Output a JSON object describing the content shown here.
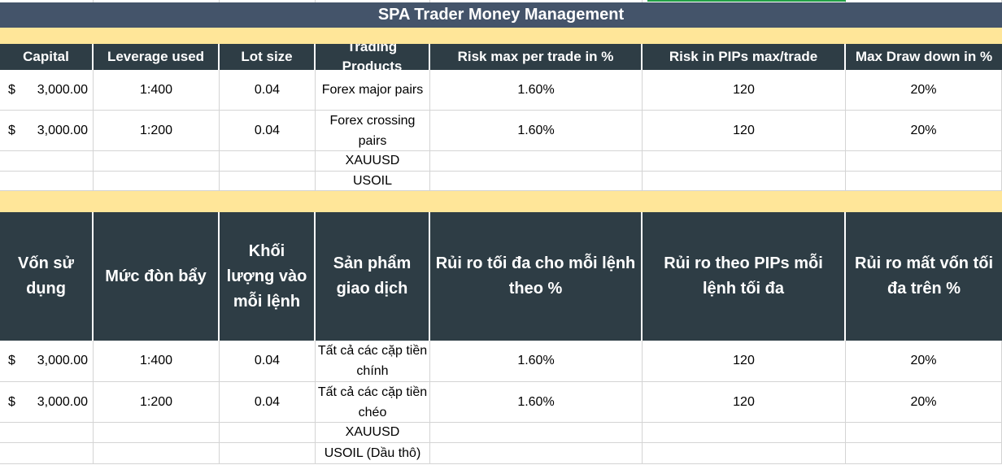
{
  "title": "SPA Trader Money Management",
  "colors": {
    "header_bg": "#2e3d45",
    "title_bg": "#44546a",
    "band": "#ffe699",
    "accent_green": "#22a045"
  },
  "english": {
    "headers": [
      "Capital",
      "Leverage used",
      "Lot size",
      "Trading Products",
      "Risk max per trade  in %",
      "Risk in PIPs max/trade",
      "Max Draw down in %"
    ],
    "rows": [
      {
        "currency": "$",
        "capital": "3,000.00",
        "leverage": "1:400",
        "lot": "0.04",
        "product": "Forex major pairs",
        "risk": "1.60%",
        "pips": "120",
        "drawdown": "20%"
      },
      {
        "currency": "$",
        "capital": "3,000.00",
        "leverage": "1:200",
        "lot": "0.04",
        "product": "Forex crossing pairs",
        "risk": "1.60%",
        "pips": "120",
        "drawdown": "20%"
      },
      {
        "currency": "",
        "capital": "",
        "leverage": "",
        "lot": "",
        "product": "XAUUSD",
        "risk": "",
        "pips": "",
        "drawdown": ""
      },
      {
        "currency": "",
        "capital": "",
        "leverage": "",
        "lot": "",
        "product": "USOIL",
        "risk": "",
        "pips": "",
        "drawdown": ""
      }
    ]
  },
  "vietnamese": {
    "headers": [
      "Vốn sử dụng",
      "Mức đòn bẩy",
      "Khối lượng vào mỗi lệnh",
      "Sản phẩm giao dịch",
      "Rủi ro tối đa cho mỗi lệnh theo %",
      "Rủi ro theo PIPs mỗi lệnh tối đa",
      "Rủi ro mất vốn tối đa trên %"
    ],
    "rows": [
      {
        "currency": "$",
        "capital": "3,000.00",
        "leverage": "1:400",
        "lot": "0.04",
        "product": "Tất cả các cặp tiền chính",
        "risk": "1.60%",
        "pips": "120",
        "drawdown": "20%"
      },
      {
        "currency": "$",
        "capital": "3,000.00",
        "leverage": "1:200",
        "lot": "0.04",
        "product": "Tất cả các cặp tiền chéo",
        "risk": "1.60%",
        "pips": "120",
        "drawdown": "20%"
      },
      {
        "currency": "",
        "capital": "",
        "leverage": "",
        "lot": "",
        "product": "XAUUSD",
        "risk": "",
        "pips": "",
        "drawdown": ""
      },
      {
        "currency": "",
        "capital": "",
        "leverage": "",
        "lot": "",
        "product": "USOIL (Dầu thô)",
        "risk": "",
        "pips": "",
        "drawdown": ""
      }
    ]
  }
}
